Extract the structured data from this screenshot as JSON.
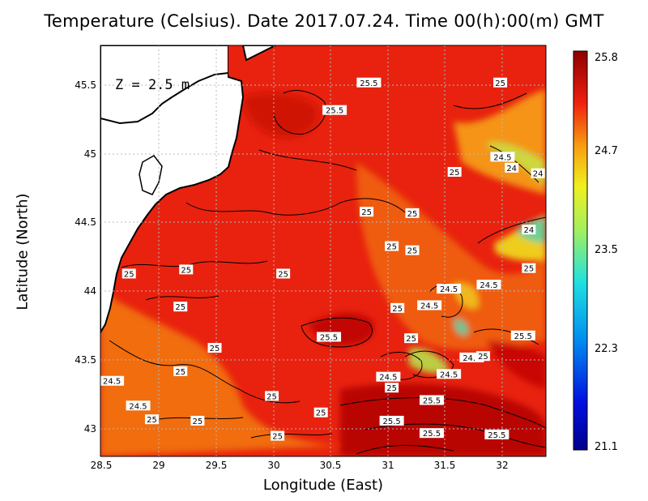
{
  "title": "Temperature (Celsius). Date 2017.07.24. Time 00(h):00(m) GMT",
  "xlabel": "Longitude (East)",
  "ylabel": "Latitude (North)",
  "depth_label": "Z = 2.5 m",
  "x_ticks": [
    "28.5",
    "29",
    "29.5",
    "30",
    "30.5",
    "31",
    "31.5",
    "32"
  ],
  "y_ticks": [
    "45.5",
    "45",
    "44.5",
    "44",
    "43.5",
    "43"
  ],
  "colorbar": {
    "labels": [
      "25.8",
      "24.7",
      "23.5",
      "22.3",
      "21.1"
    ],
    "min": 21.1,
    "max": 25.8
  },
  "colors": {
    "water_main": "#e8220f",
    "water_cool": "#f27a12",
    "water_warm": "#b00000",
    "land": "#ffffff"
  },
  "contour_labels": [
    {
      "text": "25.5",
      "lon": 30.85,
      "lat": 45.52
    },
    {
      "text": "25",
      "lon": 32.0,
      "lat": 45.52
    },
    {
      "text": "25.5",
      "lon": 30.55,
      "lat": 45.32
    },
    {
      "text": "24.5",
      "lon": 32.02,
      "lat": 44.98
    },
    {
      "text": "24",
      "lon": 32.1,
      "lat": 44.9
    },
    {
      "text": "24",
      "lon": 32.33,
      "lat": 44.86
    },
    {
      "text": "25",
      "lon": 31.6,
      "lat": 44.87
    },
    {
      "text": "25",
      "lon": 30.83,
      "lat": 44.58
    },
    {
      "text": "25",
      "lon": 31.23,
      "lat": 44.57
    },
    {
      "text": "24",
      "lon": 32.25,
      "lat": 44.45
    },
    {
      "text": "25",
      "lon": 31.05,
      "lat": 44.33
    },
    {
      "text": "25",
      "lon": 31.23,
      "lat": 44.3
    },
    {
      "text": "25",
      "lon": 28.75,
      "lat": 44.13
    },
    {
      "text": "25",
      "lon": 29.25,
      "lat": 44.16
    },
    {
      "text": "25",
      "lon": 30.1,
      "lat": 44.13
    },
    {
      "text": "25",
      "lon": 32.25,
      "lat": 44.17
    },
    {
      "text": "24.5",
      "lon": 31.55,
      "lat": 44.02
    },
    {
      "text": "24.5",
      "lon": 31.9,
      "lat": 44.05
    },
    {
      "text": "24.5",
      "lon": 31.38,
      "lat": 43.9
    },
    {
      "text": "25",
      "lon": 31.1,
      "lat": 43.88
    },
    {
      "text": "25",
      "lon": 29.2,
      "lat": 43.89
    },
    {
      "text": "25.5",
      "lon": 30.5,
      "lat": 43.67
    },
    {
      "text": "25",
      "lon": 31.22,
      "lat": 43.66
    },
    {
      "text": "25.5",
      "lon": 32.2,
      "lat": 43.68
    },
    {
      "text": "25",
      "lon": 29.5,
      "lat": 43.59
    },
    {
      "text": "24.5",
      "lon": 31.75,
      "lat": 43.52
    },
    {
      "text": "25",
      "lon": 31.85,
      "lat": 43.53
    },
    {
      "text": "25",
      "lon": 29.2,
      "lat": 43.42
    },
    {
      "text": "24.5",
      "lon": 31.55,
      "lat": 43.4
    },
    {
      "text": "24.5",
      "lon": 31.02,
      "lat": 43.38
    },
    {
      "text": "24.5",
      "lon": 28.6,
      "lat": 43.35
    },
    {
      "text": "25",
      "lon": 31.05,
      "lat": 43.3
    },
    {
      "text": "25",
      "lon": 30.0,
      "lat": 43.24
    },
    {
      "text": "25.5",
      "lon": 31.4,
      "lat": 43.21
    },
    {
      "text": "24.5",
      "lon": 28.83,
      "lat": 43.17
    },
    {
      "text": "25",
      "lon": 30.43,
      "lat": 43.12
    },
    {
      "text": "25",
      "lon": 28.95,
      "lat": 43.07
    },
    {
      "text": "25",
      "lon": 29.35,
      "lat": 43.06
    },
    {
      "text": "25.5",
      "lon": 31.05,
      "lat": 43.06
    },
    {
      "text": "25.5",
      "lon": 31.4,
      "lat": 42.97
    },
    {
      "text": "25.5",
      "lon": 31.97,
      "lat": 42.96
    },
    {
      "text": "25",
      "lon": 30.05,
      "lat": 42.95
    }
  ]
}
